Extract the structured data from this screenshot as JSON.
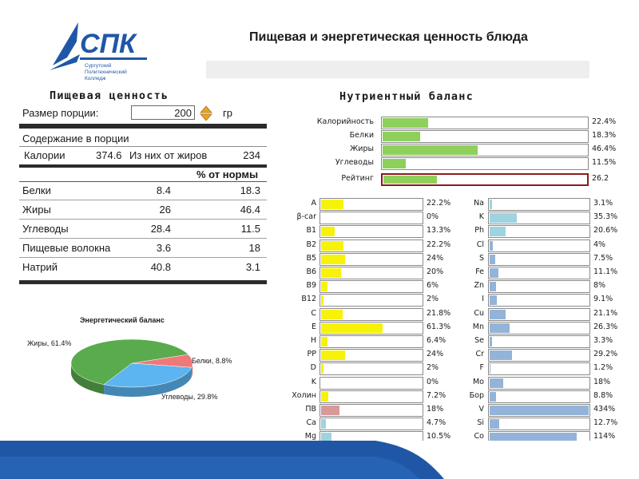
{
  "logo": {
    "brand": "СПК",
    "line1": "Сургутский",
    "line2": "Политехнический",
    "line3": "Колледж"
  },
  "slide_title": "Пищевая и энергетическая ценность блюда",
  "nutrition": {
    "title": "Пищевая ценность",
    "portion_label": "Размер порции:",
    "portion_value": "200",
    "portion_unit": "гр",
    "content_label": "Содержание в порции",
    "calories_label": "Калории",
    "calories_value": "374.6",
    "fat_cal_label": "Из них от жиров",
    "fat_cal_value": "234",
    "pct_header": "% от нормы",
    "rows": [
      {
        "name": "Белки",
        "value": "8.4",
        "pct": "18.3"
      },
      {
        "name": "Жиры",
        "value": "26",
        "pct": "46.4"
      },
      {
        "name": "Углеводы",
        "value": "28.4",
        "pct": "11.5"
      },
      {
        "name": "Пищевые волокна",
        "value": "3.6",
        "pct": "18"
      },
      {
        "name": "Натрий",
        "value": "40.8",
        "pct": "3.1"
      }
    ]
  },
  "pie": {
    "title": "Энергетический баланс",
    "slices": [
      {
        "name": "Жиры",
        "value": 61.4,
        "label": "Жиры, 61.4%",
        "color": "#5aaa4e"
      },
      {
        "name": "Белки",
        "value": 8.8,
        "label": "Белки, 8.8%",
        "color": "#f07878"
      },
      {
        "name": "Углеводы",
        "value": 29.8,
        "label": "Углеводы, 29.8%",
        "color": "#5cb4f0"
      }
    ]
  },
  "balance": {
    "title": "Нутриентный баланс",
    "main": [
      {
        "name": "Калорийность",
        "value": 22.4,
        "pct": "22.4%"
      },
      {
        "name": "Белки",
        "value": 18.3,
        "pct": "18.3%"
      },
      {
        "name": "Жиры",
        "value": 46.4,
        "pct": "46.4%"
      },
      {
        "name": "Углеводы",
        "value": 11.5,
        "pct": "11.5%"
      }
    ],
    "rating": {
      "name": "Рейтинг",
      "value": 26.2,
      "pct": "26.2"
    },
    "vitamins": [
      {
        "name": "A",
        "value": 22.2,
        "pct": "22.2%"
      },
      {
        "name": "β-car",
        "value": 0,
        "pct": "0%"
      },
      {
        "name": "B1",
        "value": 13.3,
        "pct": "13.3%"
      },
      {
        "name": "B2",
        "value": 22.2,
        "pct": "22.2%"
      },
      {
        "name": "B5",
        "value": 24,
        "pct": "24%"
      },
      {
        "name": "B6",
        "value": 20,
        "pct": "20%"
      },
      {
        "name": "B9",
        "value": 6,
        "pct": "6%"
      },
      {
        "name": "B12",
        "value": 2,
        "pct": "2%"
      },
      {
        "name": "C",
        "value": 21.8,
        "pct": "21.8%"
      },
      {
        "name": "E",
        "value": 61.3,
        "pct": "61.3%"
      },
      {
        "name": "H",
        "value": 6.4,
        "pct": "6.4%"
      },
      {
        "name": "PP",
        "value": 24,
        "pct": "24%"
      },
      {
        "name": "D",
        "value": 2,
        "pct": "2%"
      },
      {
        "name": "K",
        "value": 0,
        "pct": "0%"
      },
      {
        "name": "Холин",
        "value": 7.2,
        "pct": "7.2%"
      },
      {
        "name": "ПВ",
        "value": 18,
        "pct": "18%",
        "color": "#d99999"
      },
      {
        "name": "Ca",
        "value": 4.7,
        "pct": "4.7%",
        "color": "#9fd3e0"
      },
      {
        "name": "Mg",
        "value": 10.5,
        "pct": "10.5%",
        "color": "#9fd3e0"
      }
    ],
    "minerals": [
      {
        "name": "Na",
        "value": 3.1,
        "pct": "3.1%",
        "color": "#9fd3e0"
      },
      {
        "name": "K",
        "value": 35.3,
        "pct": "35.3%",
        "color": "#9fd3e0"
      },
      {
        "name": "Ph",
        "value": 20.6,
        "pct": "20.6%",
        "color": "#9fd3e0"
      },
      {
        "name": "Cl",
        "value": 4,
        "pct": "4%"
      },
      {
        "name": "S",
        "value": 7.5,
        "pct": "7.5%"
      },
      {
        "name": "Fe",
        "value": 11.1,
        "pct": "11.1%"
      },
      {
        "name": "Zn",
        "value": 8,
        "pct": "8%"
      },
      {
        "name": "I",
        "value": 9.1,
        "pct": "9.1%"
      },
      {
        "name": "Cu",
        "value": 21.1,
        "pct": "21.1%"
      },
      {
        "name": "Mn",
        "value": 26.3,
        "pct": "26.3%"
      },
      {
        "name": "Se",
        "value": 3.3,
        "pct": "3.3%"
      },
      {
        "name": "Cr",
        "value": 29.2,
        "pct": "29.2%"
      },
      {
        "name": "F",
        "value": 1.2,
        "pct": "1.2%"
      },
      {
        "name": "Mo",
        "value": 18,
        "pct": "18%"
      },
      {
        "name": "Бор",
        "value": 8.8,
        "pct": "8.8%"
      },
      {
        "name": "V",
        "value": 434,
        "pct": "434%"
      },
      {
        "name": "Si",
        "value": 12.7,
        "pct": "12.7%"
      },
      {
        "name": "Co",
        "value": 114,
        "pct": "114%"
      }
    ]
  },
  "colors": {
    "main_bar": "#8fd05c",
    "vitamin_bar": "#f7f20a",
    "mineral_bar": "#94b3d8",
    "rating_border": "#8b1a1a",
    "logo_blue": "#1f57a6"
  }
}
